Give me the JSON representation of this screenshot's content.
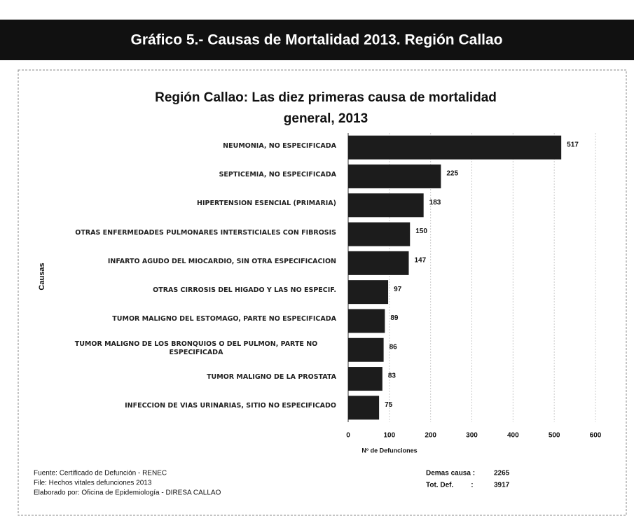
{
  "header": {
    "title": "Gráfico 5.- Causas de Mortalidad 2013. Región Callao"
  },
  "chart_data": {
    "type": "barh",
    "title": "Región Callao: Las diez primeras causa de mortalidad general, 2013",
    "x_label": "Nº de Defunciones",
    "y_label": "Causas",
    "categories": [
      "NEUMONIA, NO ESPECIFICADA",
      "SEPTICEMIA, NO ESPECIFICADA",
      "HIPERTENSION ESENCIAL (PRIMARIA)",
      "OTRAS ENFERMEDADES PULMONARES INTERSTICIALES CON FIBROSIS",
      "INFARTO AGUDO DEL MIOCARDIO, SIN OTRA ESPECIFICACION",
      "OTRAS CIRROSIS DEL HIGADO Y LAS NO ESPECIF.",
      "TUMOR MALIGNO DEL ESTOMAGO, PARTE NO ESPECIFICADA",
      "TUMOR MALIGNO DE LOS BRONQUIOS O DEL PULMON, PARTE NO ESPECIFICADA",
      "TUMOR MALIGNO DE LA PROSTATA",
      "INFECCION DE VIAS URINARIAS, SITIO NO ESPECIFICADO"
    ],
    "values": [
      517,
      225,
      183,
      150,
      147,
      97,
      89,
      86,
      83,
      75
    ],
    "color": "#1c1c1c",
    "xlim": [
      0,
      600
    ],
    "xticks": [
      0,
      100,
      200,
      300,
      400,
      500,
      600
    ],
    "grid": true
  },
  "footer": {
    "sources": [
      "Fuente: Certificado de Defunción - RENEC",
      "File: Hechos vitales defunciones 2013",
      "Elaborado por: Oficina de Epidemiología - DIRESA CALLAO"
    ],
    "totals": [
      {
        "label": "Demas causa :",
        "value": "2265"
      },
      {
        "label": "Tot. Def.         :",
        "value": "3917"
      }
    ]
  }
}
